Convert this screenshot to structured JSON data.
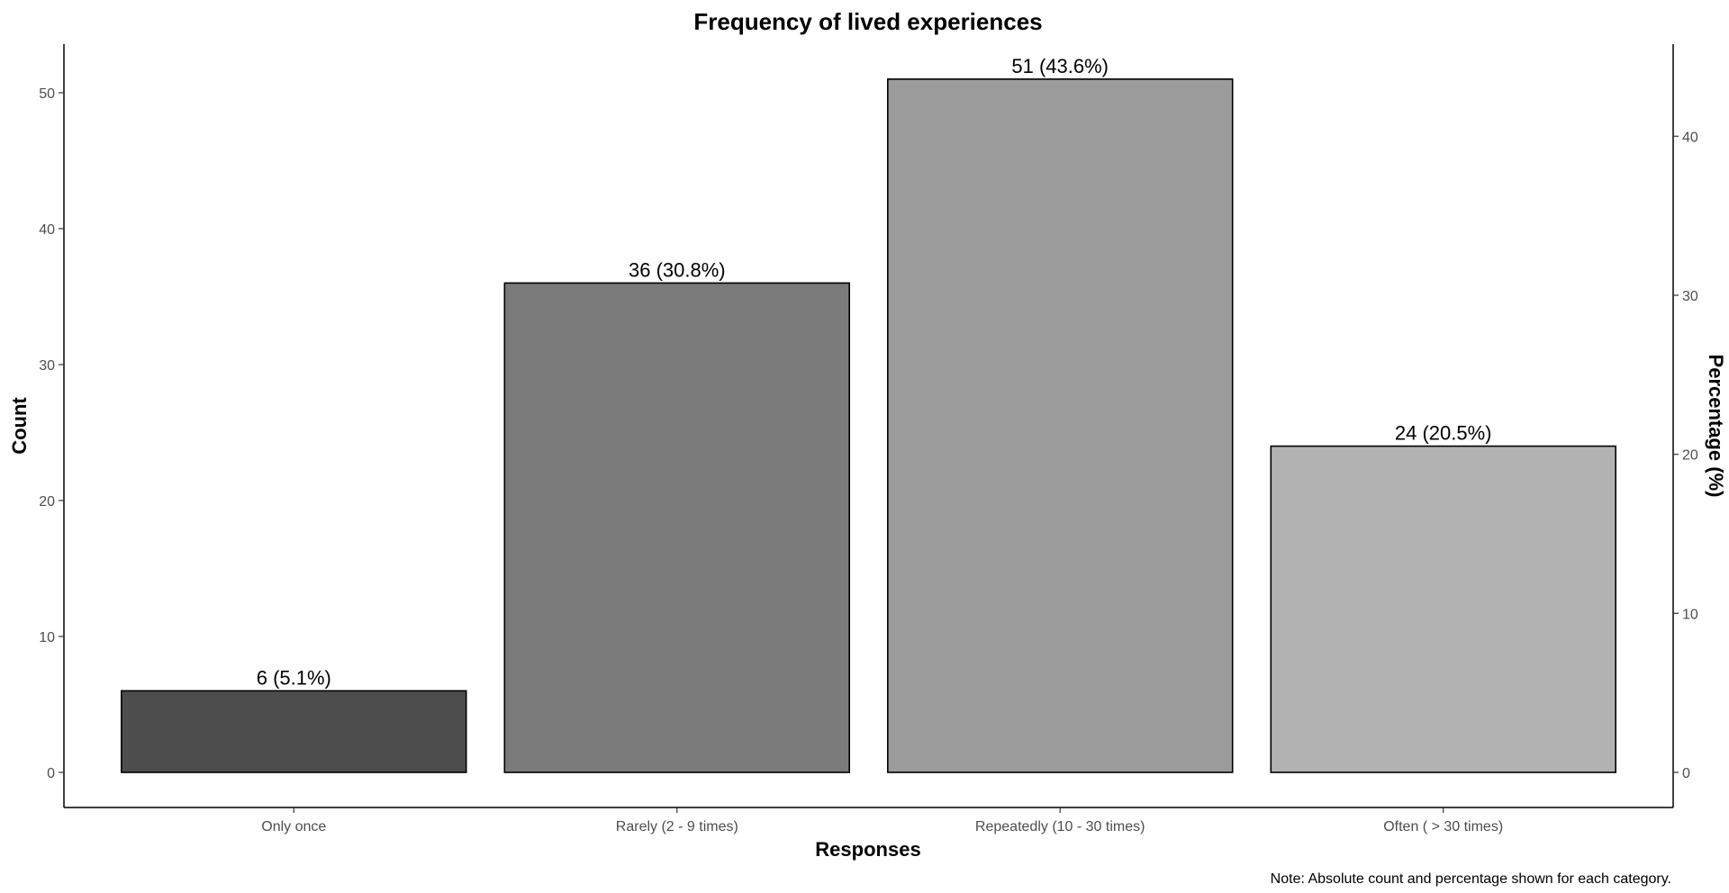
{
  "chart_data": {
    "type": "bar",
    "title": "Frequency of lived experiences",
    "xlabel": "Responses",
    "ylabel": "Count",
    "y2label": "Percentage (%)",
    "categories": [
      "Only once",
      "Rarely (2 - 9 times)",
      "Repeatedly (10 - 30 times)",
      "Often ( > 30 times)"
    ],
    "values": [
      6,
      36,
      51,
      24
    ],
    "percentages": [
      5.1,
      30.8,
      43.6,
      20.5
    ],
    "data_labels": [
      "6 (5.1%)",
      "36 (30.8%)",
      "51 (43.6%)",
      "24 (20.5%)"
    ],
    "colors": [
      "#4d4d4d",
      "#7a7a7a",
      "#9b9b9b",
      "#b2b2b2"
    ],
    "ylim": [
      0,
      53
    ],
    "yticks": [
      0,
      10,
      20,
      30,
      40,
      50
    ],
    "y2ticks": [
      0,
      10,
      20,
      30,
      40
    ],
    "grid": false,
    "note": "Note: Absolute count and percentage shown for each category."
  }
}
